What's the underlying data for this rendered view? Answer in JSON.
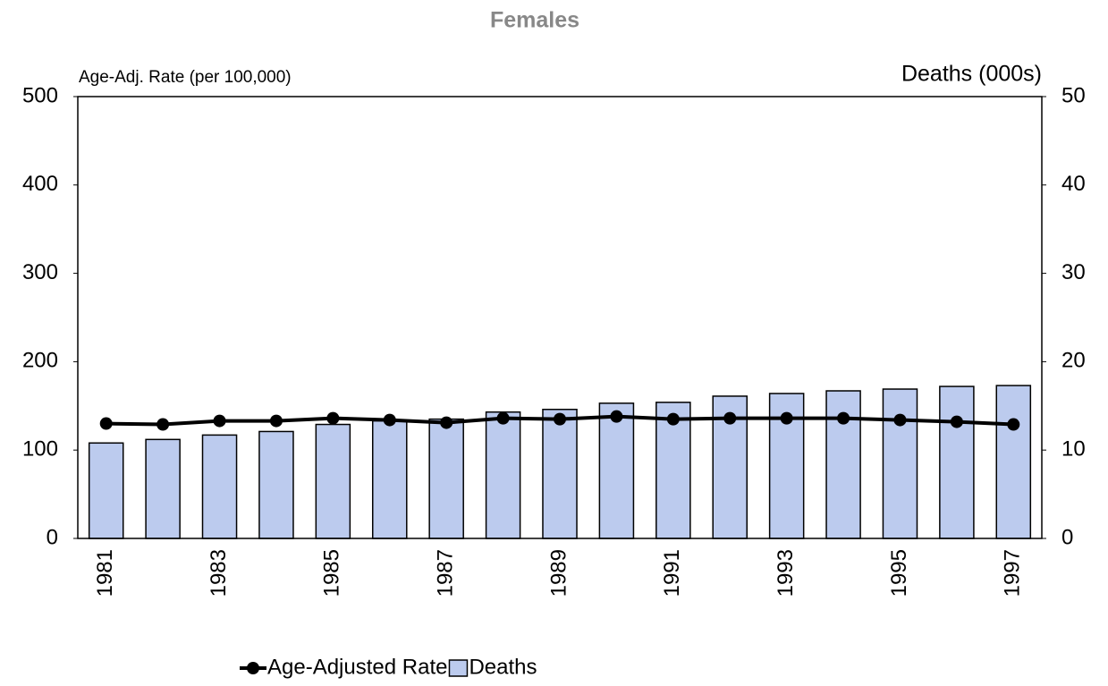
{
  "chart_data": {
    "type": "combo",
    "title": "Females",
    "y_label": "Age-Adj. Rate (per 100,000)",
    "y2_label": "Deaths (000s)",
    "categories": [
      "1981",
      null,
      "1983",
      null,
      "1985",
      null,
      "1987",
      null,
      "1989",
      null,
      "1991",
      null,
      "1993",
      null,
      "1995",
      null,
      "1997"
    ],
    "series": [
      {
        "name": "Age-Adjusted Rate",
        "type": "line",
        "color": "#000000",
        "values": [
          130,
          129,
          133,
          133,
          136,
          134,
          131,
          136,
          135,
          138,
          135,
          136,
          136,
          136,
          134,
          132,
          129
        ]
      },
      {
        "name": "Deaths",
        "type": "bar",
        "axis": "y2",
        "color": "#bccbee",
        "values": [
          10.8,
          11.2,
          11.7,
          12.1,
          12.9,
          13.3,
          13.5,
          14.3,
          14.6,
          15.3,
          15.4,
          16.1,
          16.4,
          16.7,
          16.9,
          17.2,
          17.3
        ]
      }
    ],
    "ylim": [
      0,
      500
    ],
    "yticks": [
      0,
      100,
      200,
      300,
      400,
      500
    ],
    "y2lim": [
      0,
      50
    ],
    "y2ticks": [
      0,
      10,
      20,
      30,
      40,
      50
    ],
    "legend": "bottom"
  }
}
